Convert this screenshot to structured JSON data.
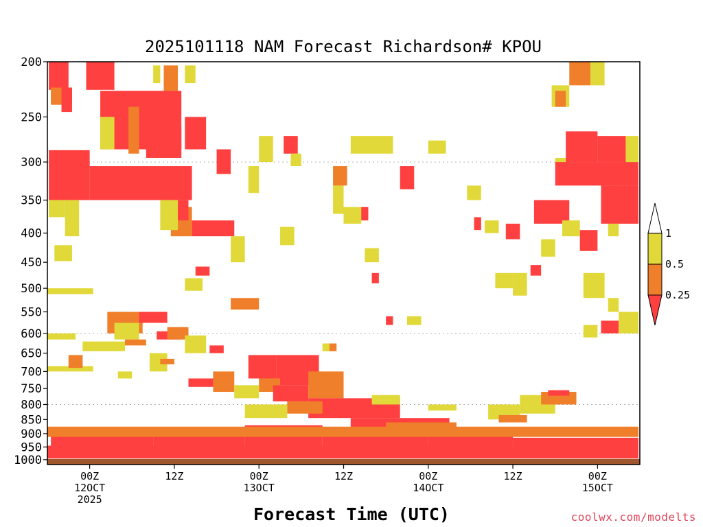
{
  "chart_data": {
    "type": "heatmap",
    "title": "2025101118 NAM Forecast Richardson# KPOU",
    "xlabel": "Forecast Time (UTC)",
    "ylabel": "",
    "y_scale": "log-pressure (inverted)",
    "ylim": [
      1020,
      200
    ],
    "y_ticks": [
      200,
      250,
      300,
      350,
      400,
      450,
      500,
      550,
      600,
      650,
      700,
      750,
      800,
      850,
      900,
      950,
      1000
    ],
    "y_tick_labels": [
      "200",
      "250",
      "300",
      "350",
      "400",
      "450",
      "500",
      "550",
      "600",
      "650",
      "700",
      "750",
      "800",
      "850",
      "900",
      "950",
      "1000"
    ],
    "x_unit": "forecast hour",
    "xlim": [
      -6,
      78
    ],
    "x_ticks": [
      {
        "hour": 0,
        "lines": [
          "00Z",
          "12OCT",
          "2025"
        ]
      },
      {
        "hour": 12,
        "lines": [
          "12Z"
        ]
      },
      {
        "hour": 24,
        "lines": [
          "00Z",
          "13OCT"
        ]
      },
      {
        "hour": 36,
        "lines": [
          "12Z"
        ]
      },
      {
        "hour": 48,
        "lines": [
          "00Z",
          "14OCT"
        ]
      },
      {
        "hour": 60,
        "lines": [
          "12Z"
        ]
      },
      {
        "hour": 72,
        "lines": [
          "00Z",
          "15OCT"
        ]
      }
    ],
    "grid": "dotted at 300, 600, 800 hPa",
    "colorbar": {
      "levels": [
        0.25,
        0.5,
        1
      ],
      "labels": [
        "0.25",
        "0.5",
        "1"
      ],
      "classes": [
        {
          "range": "< 0.25",
          "color": "#ff4040"
        },
        {
          "range": "0.25-0.5",
          "color": "#ef7f2a"
        },
        {
          "range": "0.5-1",
          "color": "#e1d93a"
        },
        {
          "range": "> 1",
          "color": "#ffffff"
        }
      ]
    },
    "ground_color": "#a0572d",
    "classes_legend": {
      "r": "Ri < 0.25",
      "o": "0.25-0.5",
      "y": "0.5-1"
    },
    "patches": [
      {
        "x": [
          -5.8,
          -3.0
        ],
        "p": [
          200,
          224
        ],
        "c": "r"
      },
      {
        "x": [
          -0.5,
          3.5
        ],
        "p": [
          200,
          224
        ],
        "c": "r"
      },
      {
        "x": [
          -5.5,
          -2.5
        ],
        "p": [
          222,
          238
        ],
        "c": "o"
      },
      {
        "x": [
          -4.0,
          -2.5
        ],
        "p": [
          222,
          245
        ],
        "c": "r"
      },
      {
        "x": [
          -5.8,
          0.0
        ],
        "p": [
          286,
          350
        ],
        "c": "r"
      },
      {
        "x": [
          0.0,
          14.5
        ],
        "p": [
          305,
          350
        ],
        "c": "r"
      },
      {
        "x": [
          1.5,
          13.0
        ],
        "p": [
          225,
          285
        ],
        "c": "r"
      },
      {
        "x": [
          8.0,
          13.0
        ],
        "p": [
          260,
          295
        ],
        "c": "r"
      },
      {
        "x": [
          10.5,
          12.5
        ],
        "p": [
          203,
          225
        ],
        "c": "o"
      },
      {
        "x": [
          9.0,
          10.0
        ],
        "p": [
          203,
          218
        ],
        "c": "y"
      },
      {
        "x": [
          13.5,
          15.0
        ],
        "p": [
          203,
          218
        ],
        "c": "y"
      },
      {
        "x": [
          13.5,
          16.5
        ],
        "p": [
          250,
          285
        ],
        "c": "r"
      },
      {
        "x": [
          5.5,
          7.0
        ],
        "p": [
          240,
          290
        ],
        "c": "o"
      },
      {
        "x": [
          1.5,
          3.5
        ],
        "p": [
          250,
          285
        ],
        "c": "y"
      },
      {
        "x": [
          -3.5,
          -1.5
        ],
        "p": [
          350,
          405
        ],
        "c": "y"
      },
      {
        "x": [
          -5.8,
          -3.5
        ],
        "p": [
          350,
          375
        ],
        "c": "y"
      },
      {
        "x": [
          -5.0,
          -2.5
        ],
        "p": [
          420,
          448
        ],
        "c": "y"
      },
      {
        "x": [
          11.5,
          14.5
        ],
        "p": [
          360,
          405
        ],
        "c": "o"
      },
      {
        "x": [
          14.5,
          20.5
        ],
        "p": [
          380,
          405
        ],
        "c": "r"
      },
      {
        "x": [
          10.0,
          12.5
        ],
        "p": [
          350,
          395
        ],
        "c": "y"
      },
      {
        "x": [
          12.5,
          14.0
        ],
        "p": [
          350,
          380
        ],
        "c": "r"
      },
      {
        "x": [
          20.0,
          22.0
        ],
        "p": [
          405,
          450
        ],
        "c": "y"
      },
      {
        "x": [
          18.0,
          20.0
        ],
        "p": [
          285,
          315
        ],
        "c": "r"
      },
      {
        "x": [
          24.0,
          26.0
        ],
        "p": [
          270,
          300
        ],
        "c": "y"
      },
      {
        "x": [
          27.5,
          29.5
        ],
        "p": [
          270,
          290
        ],
        "c": "r"
      },
      {
        "x": [
          28.5,
          30.0
        ],
        "p": [
          290,
          305
        ],
        "c": "y"
      },
      {
        "x": [
          22.5,
          24.0
        ],
        "p": [
          305,
          340
        ],
        "c": "y"
      },
      {
        "x": [
          15.0,
          17.0
        ],
        "p": [
          458,
          475
        ],
        "c": "r"
      },
      {
        "x": [
          13.5,
          16.0
        ],
        "p": [
          480,
          505
        ],
        "c": "y"
      },
      {
        "x": [
          20.0,
          24.0
        ],
        "p": [
          520,
          545
        ],
        "c": "o"
      },
      {
        "x": [
          -6.0,
          0.5
        ],
        "p": [
          500,
          512
        ],
        "c": "y"
      },
      {
        "x": [
          2.5,
          7.5
        ],
        "p": [
          550,
          600
        ],
        "c": "o"
      },
      {
        "x": [
          7.0,
          11.0
        ],
        "p": [
          550,
          575
        ],
        "c": "r"
      },
      {
        "x": [
          3.5,
          7.0
        ],
        "p": [
          575,
          615
        ],
        "c": "y"
      },
      {
        "x": [
          5.0,
          8.0
        ],
        "p": [
          615,
          630
        ],
        "c": "o"
      },
      {
        "x": [
          -1.0,
          5.0
        ],
        "p": [
          620,
          645
        ],
        "c": "y"
      },
      {
        "x": [
          9.5,
          13.0
        ],
        "p": [
          595,
          615
        ],
        "c": "r"
      },
      {
        "x": [
          11.0,
          14.0
        ],
        "p": [
          585,
          615
        ],
        "c": "o"
      },
      {
        "x": [
          13.5,
          16.5
        ],
        "p": [
          605,
          650
        ],
        "c": "y"
      },
      {
        "x": [
          17.0,
          19.0
        ],
        "p": [
          630,
          650
        ],
        "c": "r"
      },
      {
        "x": [
          8.5,
          11.0
        ],
        "p": [
          650,
          700
        ],
        "c": "y"
      },
      {
        "x": [
          10.0,
          12.0
        ],
        "p": [
          665,
          680
        ],
        "c": "o"
      },
      {
        "x": [
          -6.0,
          0.5
        ],
        "p": [
          685,
          700
        ],
        "c": "y"
      },
      {
        "x": [
          -3.0,
          -1.0
        ],
        "p": [
          655,
          690
        ],
        "c": "o"
      },
      {
        "x": [
          4.0,
          6.0
        ],
        "p": [
          700,
          720
        ],
        "c": "y"
      },
      {
        "x": [
          14.0,
          18.0
        ],
        "p": [
          720,
          745
        ],
        "c": "r"
      },
      {
        "x": [
          17.5,
          20.5
        ],
        "p": [
          700,
          760
        ],
        "c": "o"
      },
      {
        "x": [
          22.5,
          26.5
        ],
        "p": [
          655,
          720
        ],
        "c": "r"
      },
      {
        "x": [
          26.5,
          32.5
        ],
        "p": [
          655,
          740
        ],
        "c": "r"
      },
      {
        "x": [
          24.0,
          27.0
        ],
        "p": [
          720,
          760
        ],
        "c": "o"
      },
      {
        "x": [
          20.5,
          24.0
        ],
        "p": [
          740,
          780
        ],
        "c": "y"
      },
      {
        "x": [
          26.0,
          31.0
        ],
        "p": [
          740,
          790
        ],
        "c": "r"
      },
      {
        "x": [
          31.0,
          36.0
        ],
        "p": [
          700,
          780
        ],
        "c": "o"
      },
      {
        "x": [
          31.0,
          44.0
        ],
        "p": [
          780,
          845
        ],
        "c": "r"
      },
      {
        "x": [
          28.0,
          33.0
        ],
        "p": [
          790,
          830
        ],
        "c": "o"
      },
      {
        "x": [
          22.0,
          28.0
        ],
        "p": [
          800,
          845
        ],
        "c": "y"
      },
      {
        "x": [
          37.0,
          51.0
        ],
        "p": [
          845,
          880
        ],
        "c": "r"
      },
      {
        "x": [
          42.0,
          52.0
        ],
        "p": [
          860,
          880
        ],
        "c": "o"
      },
      {
        "x": [
          -5.5,
          9.0
        ],
        "p": [
          910,
          945
        ],
        "c": "r"
      },
      {
        "x": [
          9.0,
          22.0
        ],
        "p": [
          895,
          945
        ],
        "c": "r"
      },
      {
        "x": [
          22.0,
          33.0
        ],
        "p": [
          870,
          945
        ],
        "c": "r"
      },
      {
        "x": [
          33.0,
          48.0
        ],
        "p": [
          880,
          945
        ],
        "c": "r"
      },
      {
        "x": [
          48.0,
          60.0
        ],
        "p": [
          905,
          945
        ],
        "c": "r"
      },
      {
        "x": [
          60.0,
          77.8
        ],
        "p": [
          915,
          945
        ],
        "c": "r"
      },
      {
        "x": [
          -6.0,
          77.8
        ],
        "p": [
          945,
          995
        ],
        "c": "r"
      },
      {
        "x": [
          -6.0,
          77.8
        ],
        "p": [
          875,
          912
        ],
        "c": "o"
      },
      {
        "x": [
          56.5,
          61.0
        ],
        "p": [
          800,
          850
        ],
        "c": "y"
      },
      {
        "x": [
          58.0,
          62.0
        ],
        "p": [
          835,
          860
        ],
        "c": "o"
      },
      {
        "x": [
          61.0,
          66.0
        ],
        "p": [
          770,
          830
        ],
        "c": "y"
      },
      {
        "x": [
          64.0,
          69.0
        ],
        "p": [
          760,
          800
        ],
        "c": "o"
      },
      {
        "x": [
          65.0,
          68.0
        ],
        "p": [
          755,
          772
        ],
        "c": "r"
      },
      {
        "x": [
          70.0,
          73.0
        ],
        "p": [
          470,
          520
        ],
        "c": "y"
      },
      {
        "x": [
          72.5,
          75.0
        ],
        "p": [
          570,
          600
        ],
        "c": "r"
      },
      {
        "x": [
          70.0,
          72.0
        ],
        "p": [
          580,
          610
        ],
        "c": "y"
      },
      {
        "x": [
          75.0,
          77.8
        ],
        "p": [
          550,
          600
        ],
        "c": "y"
      },
      {
        "x": [
          73.5,
          75.0
        ],
        "p": [
          520,
          550
        ],
        "c": "y"
      },
      {
        "x": [
          66.0,
          68.5
        ],
        "p": [
          295,
          305
        ],
        "c": "y"
      },
      {
        "x": [
          66.0,
          77.8
        ],
        "p": [
          300,
          330
        ],
        "c": "r"
      },
      {
        "x": [
          67.5,
          72.0
        ],
        "p": [
          265,
          300
        ],
        "c": "r"
      },
      {
        "x": [
          72.0,
          76.0
        ],
        "p": [
          270,
          300
        ],
        "c": "r"
      },
      {
        "x": [
          76.0,
          77.8
        ],
        "p": [
          270,
          300
        ],
        "c": "y"
      },
      {
        "x": [
          72.5,
          77.8
        ],
        "p": [
          330,
          385
        ],
        "c": "r"
      },
      {
        "x": [
          63.0,
          68.0
        ],
        "p": [
          350,
          385
        ],
        "c": "r"
      },
      {
        "x": [
          59.0,
          61.0
        ],
        "p": [
          385,
          410
        ],
        "c": "r"
      },
      {
        "x": [
          69.5,
          72.0
        ],
        "p": [
          395,
          430
        ],
        "c": "r"
      },
      {
        "x": [
          67.0,
          69.5
        ],
        "p": [
          380,
          405
        ],
        "c": "y"
      },
      {
        "x": [
          64.0,
          66.0
        ],
        "p": [
          410,
          440
        ],
        "c": "y"
      },
      {
        "x": [
          73.5,
          75.0
        ],
        "p": [
          385,
          405
        ],
        "c": "y"
      },
      {
        "x": [
          75.0,
          77.8
        ],
        "p": [
          330,
          385
        ],
        "c": "r"
      },
      {
        "x": [
          68.0,
          71.0
        ],
        "p": [
          200,
          220
        ],
        "c": "o"
      },
      {
        "x": [
          71.0,
          73.0
        ],
        "p": [
          200,
          220
        ],
        "c": "y"
      },
      {
        "x": [
          65.5,
          68.0
        ],
        "p": [
          220,
          240
        ],
        "c": "y"
      },
      {
        "x": [
          66.0,
          67.5
        ],
        "p": [
          225,
          240
        ],
        "c": "o"
      },
      {
        "x": [
          -6.0,
          -2.0
        ],
        "p": [
          600,
          615
        ],
        "c": "y"
      },
      {
        "x": [
          40.0,
          44.0
        ],
        "p": [
          770,
          800
        ],
        "c": "y"
      },
      {
        "x": [
          48.0,
          52.0
        ],
        "p": [
          800,
          820
        ],
        "c": "y"
      },
      {
        "x": [
          37.0,
          43.0
        ],
        "p": [
          270,
          290
        ],
        "c": "y"
      },
      {
        "x": [
          44.0,
          46.0
        ],
        "p": [
          305,
          335
        ],
        "c": "r"
      },
      {
        "x": [
          48.0,
          50.5
        ],
        "p": [
          275,
          290
        ],
        "c": "y"
      },
      {
        "x": [
          34.5,
          36.5
        ],
        "p": [
          305,
          330
        ],
        "c": "o"
      },
      {
        "x": [
          34.5,
          36.0
        ],
        "p": [
          330,
          370
        ],
        "c": "y"
      },
      {
        "x": [
          36.0,
          38.5
        ],
        "p": [
          360,
          385
        ],
        "c": "y"
      },
      {
        "x": [
          38.5,
          39.5
        ],
        "p": [
          360,
          380
        ],
        "c": "r"
      },
      {
        "x": [
          39.0,
          41.0
        ],
        "p": [
          425,
          450
        ],
        "c": "y"
      },
      {
        "x": [
          40.0,
          41.0
        ],
        "p": [
          470,
          490
        ],
        "c": "r"
      },
      {
        "x": [
          45.0,
          47.0
        ],
        "p": [
          560,
          580
        ],
        "c": "y"
      },
      {
        "x": [
          42.0,
          43.0
        ],
        "p": [
          560,
          580
        ],
        "c": "r"
      },
      {
        "x": [
          27.0,
          29.0
        ],
        "p": [
          390,
          420
        ],
        "c": "y"
      },
      {
        "x": [
          33.5,
          35.0
        ],
        "p": [
          625,
          645
        ],
        "c": "o"
      },
      {
        "x": [
          33.0,
          34.0
        ],
        "p": [
          625,
          645
        ],
        "c": "y"
      },
      {
        "x": [
          53.5,
          55.5
        ],
        "p": [
          330,
          350
        ],
        "c": "y"
      },
      {
        "x": [
          54.5,
          55.5
        ],
        "p": [
          375,
          395
        ],
        "c": "r"
      },
      {
        "x": [
          56.0,
          58.0
        ],
        "p": [
          380,
          400
        ],
        "c": "y"
      },
      {
        "x": [
          57.5,
          60.0
        ],
        "p": [
          470,
          500
        ],
        "c": "y"
      },
      {
        "x": [
          60.0,
          62.0
        ],
        "p": [
          470,
          515
        ],
        "c": "y"
      },
      {
        "x": [
          62.5,
          64.0
        ],
        "p": [
          455,
          475
        ],
        "c": "r"
      }
    ]
  },
  "colorbar_labels": {
    "one": "1",
    "half": "0.5",
    "quarter": "0.25"
  },
  "credit": "coolwx.com/modelts"
}
